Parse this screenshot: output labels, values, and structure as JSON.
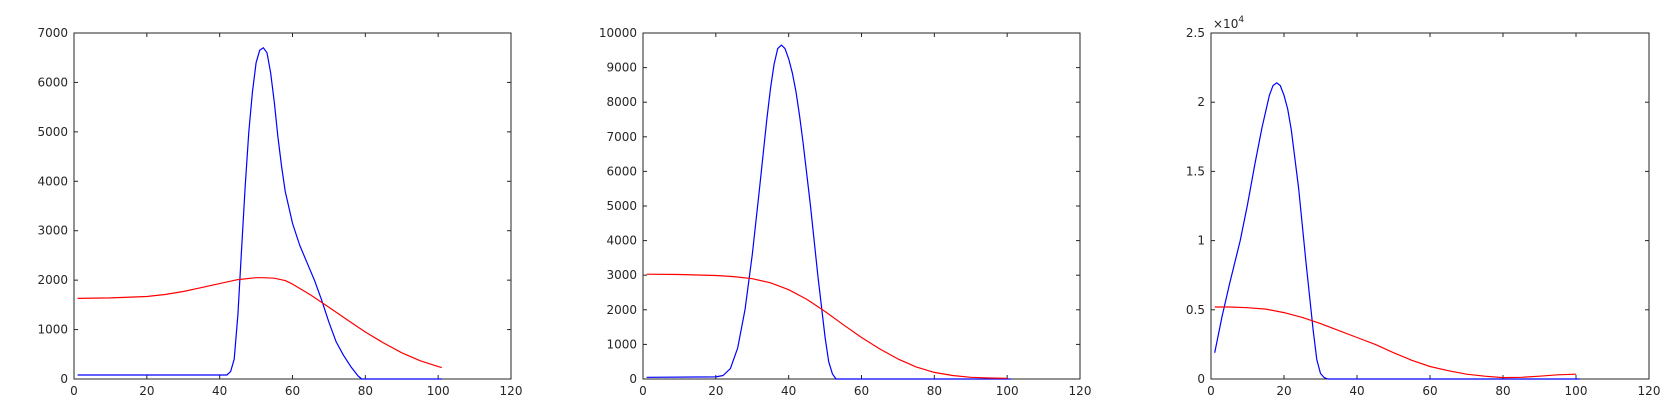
{
  "chart_data": [
    {
      "type": "line",
      "xlim": [
        0,
        120
      ],
      "ylim": [
        0,
        7000
      ],
      "xticks": [
        "0",
        "20",
        "40",
        "60",
        "80",
        "100",
        "120"
      ],
      "yticks": [
        "0",
        "1000",
        "2000",
        "3000",
        "4000",
        "5000",
        "6000",
        "7000"
      ],
      "exponent_label": "",
      "title": "",
      "xlabel": "",
      "ylabel": "",
      "grid": false,
      "series": [
        {
          "color": "#0000ff",
          "x": [
            1,
            42,
            43,
            44,
            45,
            46,
            47,
            48,
            49,
            50,
            51,
            52,
            53,
            54,
            55,
            56,
            57,
            58,
            60,
            62,
            64,
            66,
            68,
            70,
            72,
            74,
            76,
            78,
            79,
            101
          ],
          "y": [
            80,
            80,
            150,
            400,
            1300,
            2600,
            3900,
            5000,
            5800,
            6400,
            6650,
            6700,
            6600,
            6200,
            5600,
            4900,
            4300,
            3800,
            3150,
            2700,
            2350,
            2000,
            1600,
            1150,
            750,
            480,
            250,
            60,
            0,
            0
          ]
        },
        {
          "color": "#ff0000",
          "x": [
            1,
            10,
            20,
            25,
            30,
            35,
            40,
            45,
            50,
            52,
            55,
            58,
            60,
            65,
            70,
            75,
            80,
            85,
            90,
            95,
            100,
            101
          ],
          "y": [
            1630,
            1640,
            1670,
            1710,
            1770,
            1850,
            1930,
            2010,
            2050,
            2050,
            2040,
            1990,
            1920,
            1700,
            1450,
            1200,
            950,
            730,
            530,
            370,
            250,
            230
          ]
        }
      ]
    },
    {
      "type": "line",
      "xlim": [
        0,
        120
      ],
      "ylim": [
        0,
        10000
      ],
      "xticks": [
        "0",
        "20",
        "40",
        "60",
        "80",
        "100",
        "120"
      ],
      "yticks": [
        "0",
        "1000",
        "2000",
        "3000",
        "4000",
        "5000",
        "6000",
        "7000",
        "8000",
        "9000",
        "10000"
      ],
      "exponent_label": "",
      "title": "",
      "xlabel": "",
      "ylabel": "",
      "grid": false,
      "series": [
        {
          "color": "#0000ff",
          "x": [
            1,
            20,
            22,
            24,
            26,
            28,
            30,
            32,
            34,
            35,
            36,
            37,
            38,
            39,
            40,
            41,
            42,
            43,
            44,
            46,
            48,
            50,
            51,
            52,
            53,
            101
          ],
          "y": [
            50,
            60,
            100,
            300,
            900,
            2000,
            3600,
            5500,
            7500,
            8400,
            9100,
            9550,
            9650,
            9550,
            9250,
            8850,
            8300,
            7600,
            6800,
            5000,
            3000,
            1200,
            500,
            150,
            0,
            0
          ]
        },
        {
          "color": "#ff0000",
          "x": [
            1,
            10,
            20,
            25,
            30,
            35,
            40,
            45,
            50,
            55,
            60,
            65,
            70,
            75,
            80,
            85,
            90,
            95,
            100
          ],
          "y": [
            3030,
            3020,
            2990,
            2960,
            2900,
            2780,
            2580,
            2300,
            1950,
            1570,
            1200,
            870,
            580,
            350,
            190,
            100,
            50,
            30,
            20
          ]
        }
      ]
    },
    {
      "type": "line",
      "xlim": [
        0,
        120
      ],
      "ylim": [
        0,
        2.5
      ],
      "xticks": [
        "0",
        "20",
        "40",
        "60",
        "80",
        "100",
        "120"
      ],
      "yticks": [
        "0",
        "0.5",
        "1",
        "1.5",
        "2",
        "2.5"
      ],
      "exponent_label": "×10",
      "exponent_value": "4",
      "title": "",
      "xlabel": "",
      "ylabel": "",
      "grid": false,
      "series": [
        {
          "color": "#0000ff",
          "x": [
            1,
            3,
            5,
            8,
            10,
            12,
            14,
            16,
            17,
            18,
            19,
            20,
            21,
            22,
            24,
            26,
            28,
            29,
            30,
            31,
            32,
            101
          ],
          "y": [
            0.19,
            0.45,
            0.68,
            1.0,
            1.26,
            1.55,
            1.82,
            2.05,
            2.12,
            2.14,
            2.12,
            2.05,
            1.95,
            1.8,
            1.38,
            0.85,
            0.35,
            0.14,
            0.04,
            0.01,
            0,
            0
          ]
        },
        {
          "color": "#ff0000",
          "x": [
            1,
            5,
            10,
            15,
            20,
            25,
            30,
            35,
            40,
            45,
            50,
            55,
            60,
            65,
            70,
            75,
            80,
            85,
            90,
            95,
            100
          ],
          "y": [
            0.52,
            0.52,
            0.515,
            0.505,
            0.48,
            0.445,
            0.4,
            0.35,
            0.3,
            0.25,
            0.19,
            0.135,
            0.09,
            0.06,
            0.035,
            0.02,
            0.01,
            0.012,
            0.02,
            0.03,
            0.035
          ]
        }
      ]
    }
  ]
}
